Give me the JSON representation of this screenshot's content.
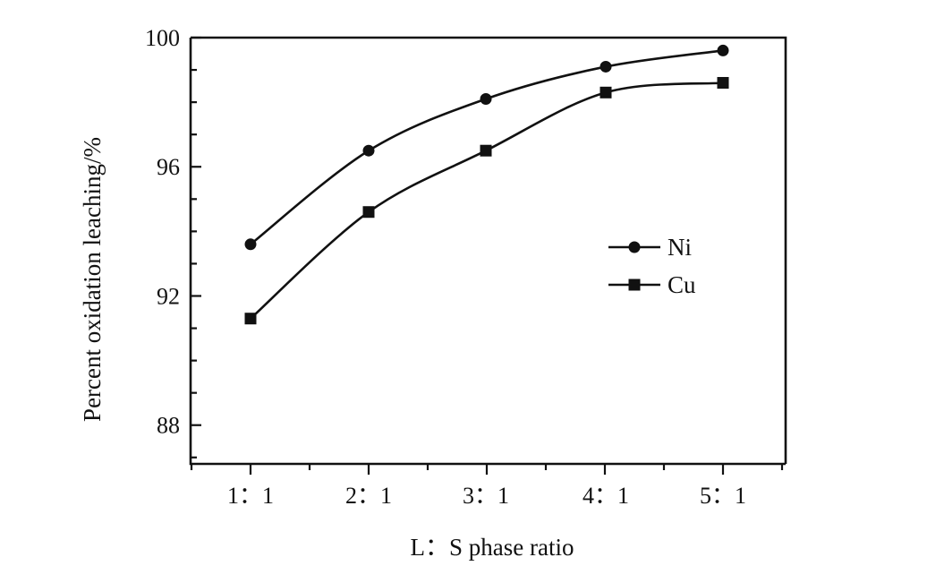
{
  "chart_data": {
    "type": "line",
    "categories": [
      "1：1",
      "2：1",
      "3：1",
      "4：1",
      "5：1"
    ],
    "xlabel": "L：S phase ratio",
    "ylabel": "Percent oxidation leaching/%",
    "ylim": [
      86.8,
      100
    ],
    "yticks": [
      88,
      92,
      96,
      100
    ],
    "y_minor_step": 1,
    "grid": false,
    "legend": "right-center",
    "series": [
      {
        "name": "Ni",
        "marker": "circle",
        "values": [
          93.6,
          96.5,
          98.1,
          99.1,
          99.6
        ]
      },
      {
        "name": "Cu",
        "marker": "square",
        "values": [
          91.3,
          94.6,
          96.5,
          98.3,
          98.6
        ]
      }
    ]
  }
}
